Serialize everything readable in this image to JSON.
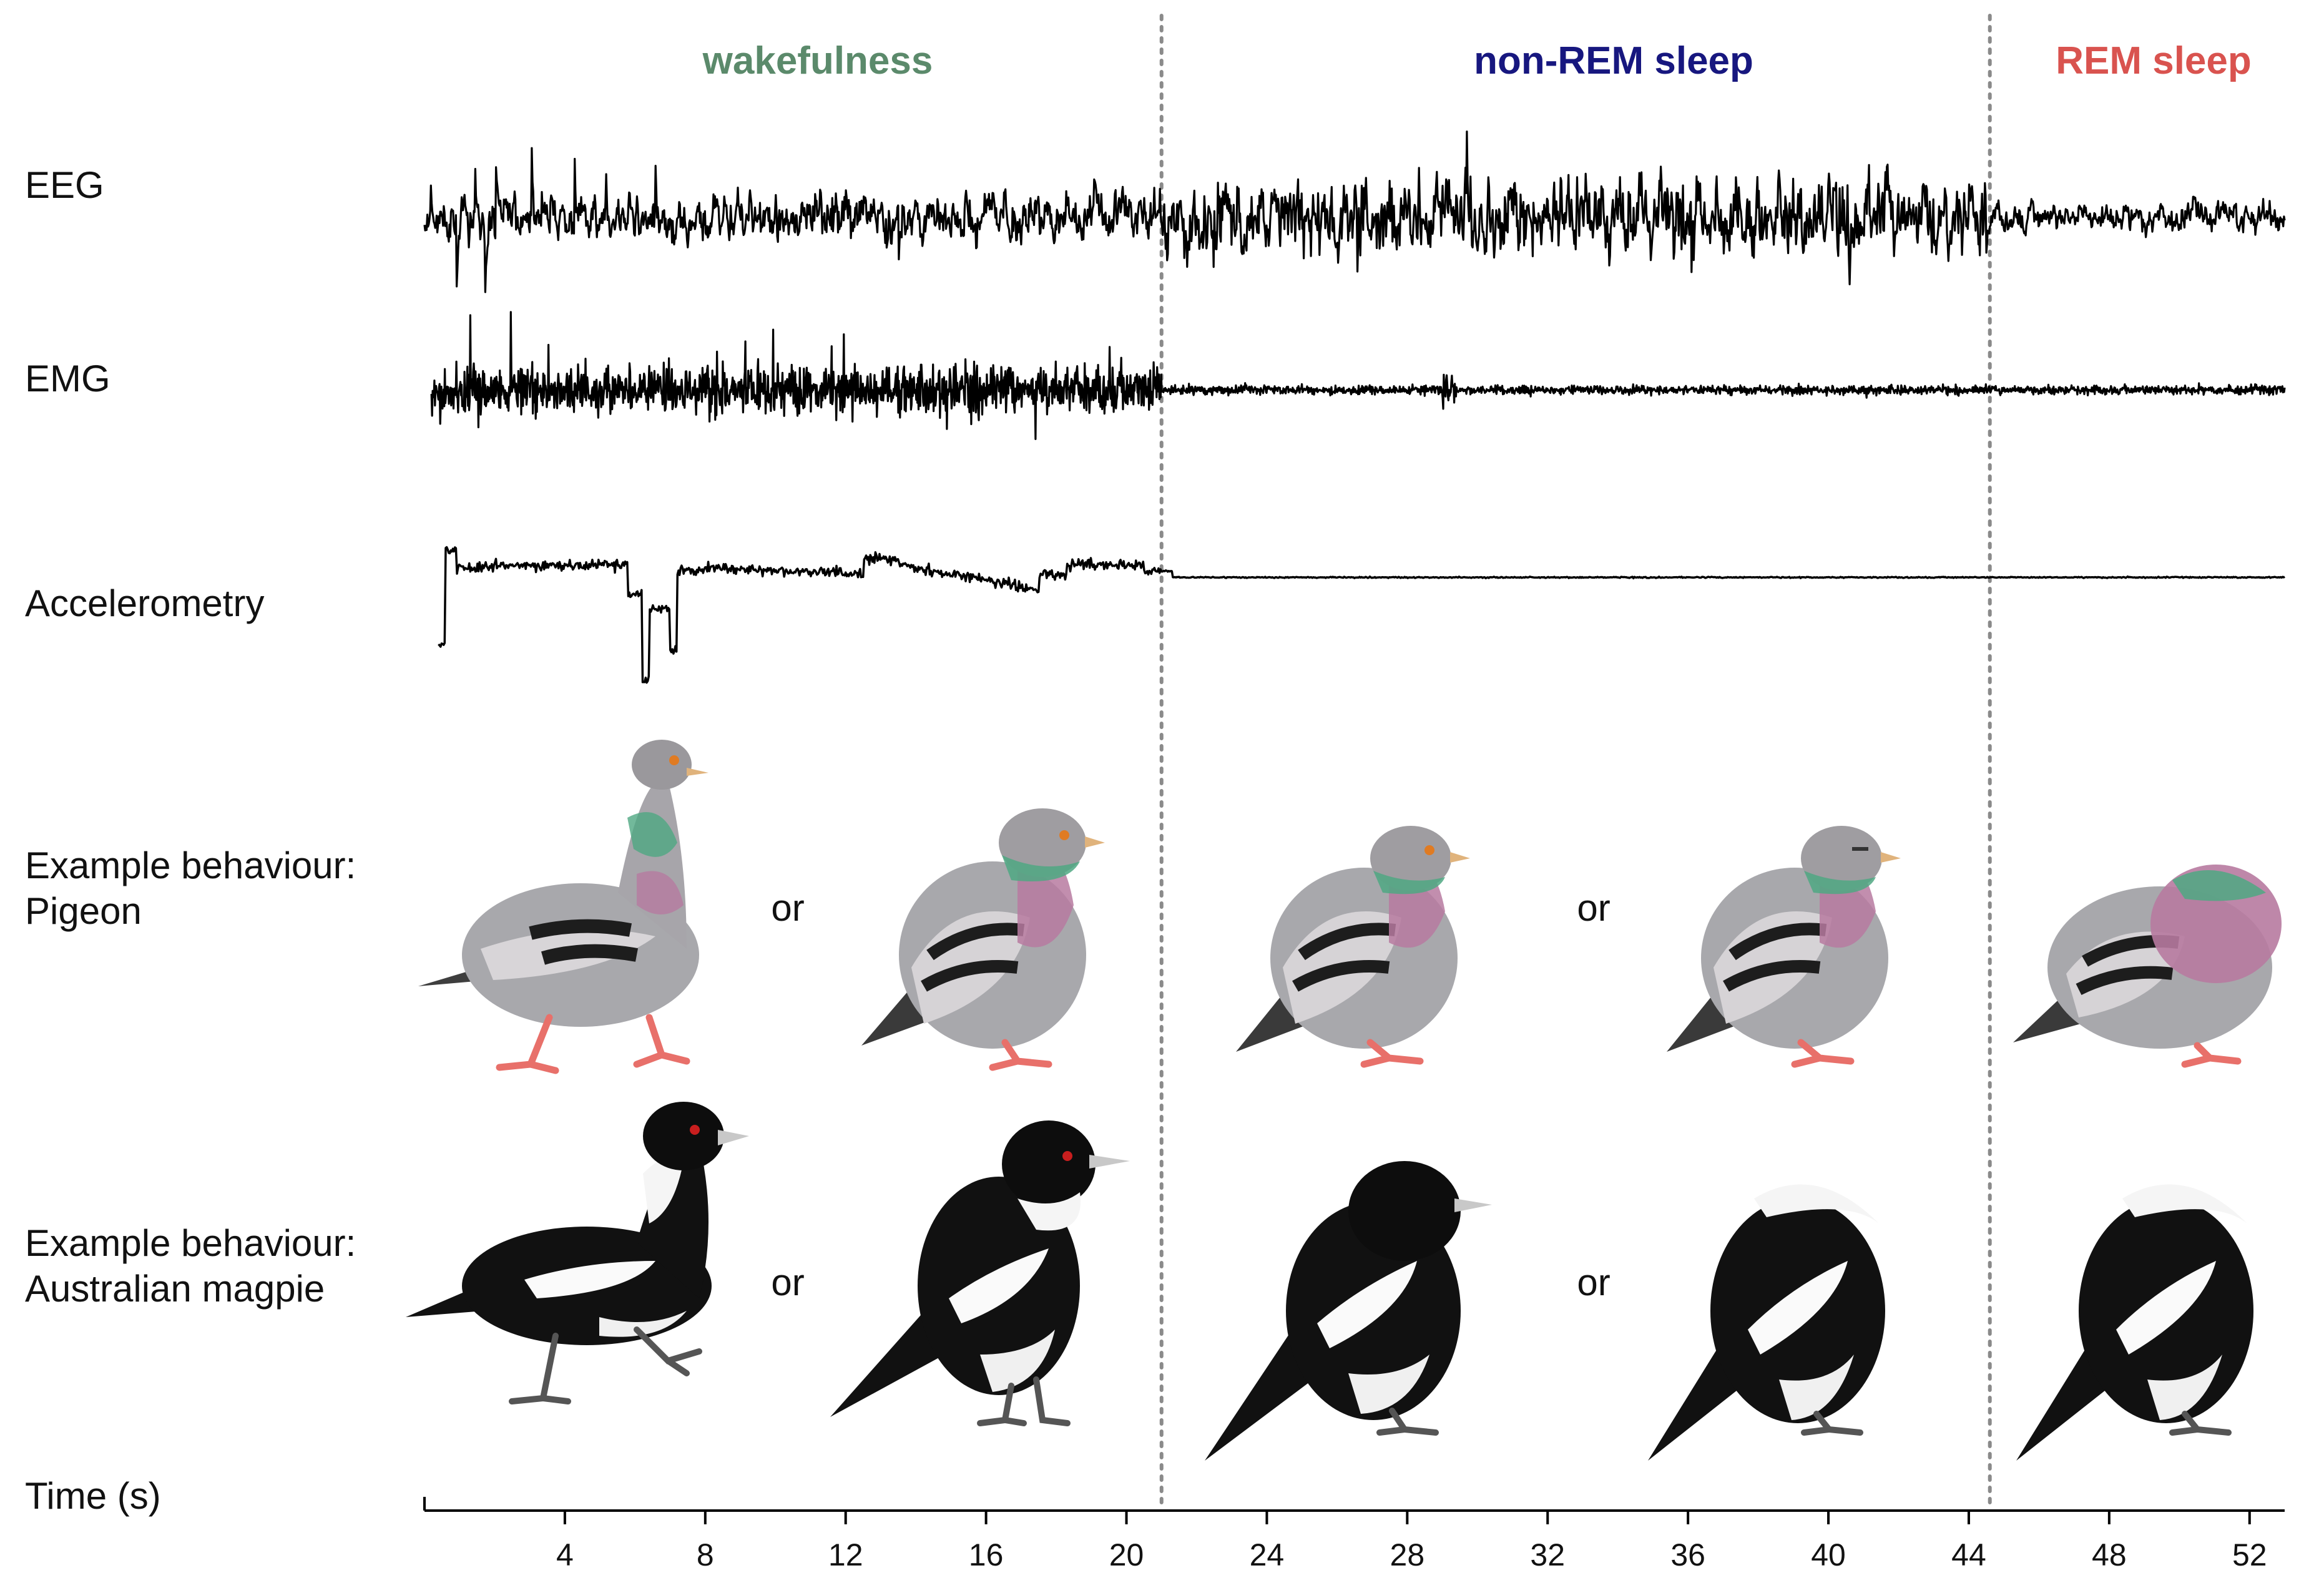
{
  "states": [
    {
      "name": "wakefulness",
      "color": "#5b8a6b"
    },
    {
      "name": "non-REM sleep",
      "color": "#17177f"
    },
    {
      "name": "REM sleep",
      "color": "#d9534f"
    }
  ],
  "rows": {
    "eeg": "EEG",
    "emg": "EMG",
    "accel": "Accelerometry",
    "pigeon_line1": "Example behaviour:",
    "pigeon_line2": "Pigeon",
    "magpie_line1": "Example behaviour:",
    "magpie_line2": "Australian magpie"
  },
  "connector": "or",
  "boundaries_s": [
    21,
    44.6
  ],
  "time_axis": {
    "label": "Time (s)",
    "min": 0,
    "max": 53,
    "ticks": [
      4,
      8,
      12,
      16,
      20,
      24,
      28,
      32,
      36,
      40,
      44,
      48,
      52
    ]
  },
  "illustrations": {
    "pigeon": [
      "pigeon walking",
      "pigeon perched awake",
      "pigeon resting eyes open",
      "pigeon resting eyes half closed",
      "pigeon fluffed, head sunk"
    ],
    "magpie": [
      "magpie walking",
      "magpie perched alert",
      "magpie resting",
      "magpie head tucked",
      "magpie head tucked"
    ]
  }
}
